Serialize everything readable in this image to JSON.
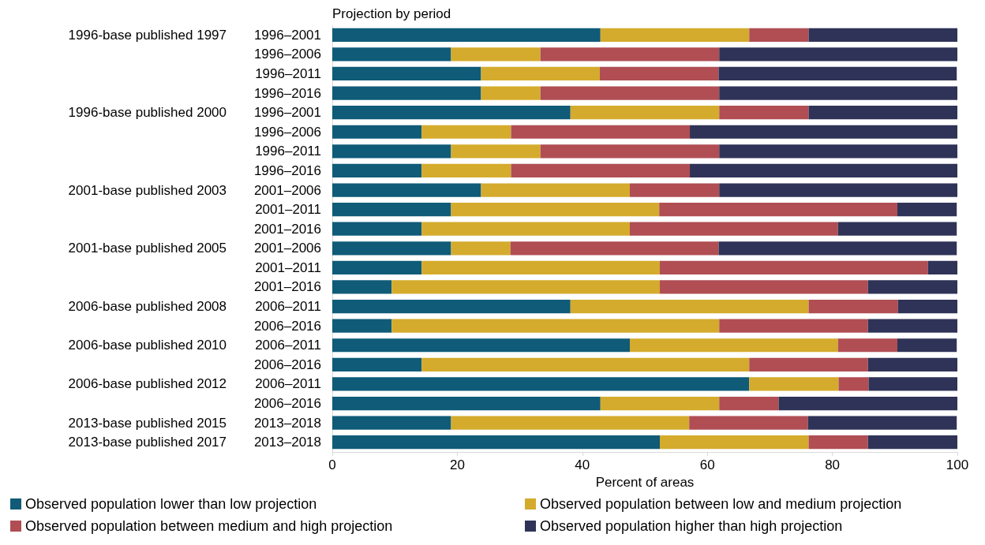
{
  "chart_data": {
    "type": "bar",
    "orientation": "horizontal",
    "stacked": true,
    "ylabel": "Projection by period",
    "xlabel": "Percent of areas",
    "categories": [
      "1996–2001",
      "1996–2006",
      "1996–2011",
      "1996–2016",
      "1996–2001",
      "1996–2006",
      "1996–2011",
      "1996–2016",
      "2001–2006",
      "2001–2011",
      "2001–2016",
      "2001–2006",
      "2001–2011",
      "2001–2016",
      "2006–2011",
      "2006–2016",
      "2006–2011",
      "2006–2016",
      "2006–2011",
      "2006–2016",
      "2013–2018",
      "2013–2018"
    ],
    "y2_categories": [
      "1996-base published 1997",
      null,
      null,
      null,
      "1996-base published 2000",
      null,
      null,
      null,
      "2001-base published 2003",
      null,
      null,
      "2001-base published 2005",
      null,
      null,
      "2006-base published 2008",
      null,
      "2006-base published 2010",
      null,
      "2006-base published 2012",
      null,
      "2013-base published 2015",
      "2013-base published 2017"
    ],
    "series": [
      {
        "name": "Observed population lower than low projection",
        "color": "#0f5b78",
        "values": [
          42.9,
          19.0,
          23.8,
          23.8,
          38.1,
          14.3,
          19.0,
          14.3,
          23.8,
          19.0,
          14.3,
          19.0,
          14.3,
          9.5,
          38.1,
          9.5,
          47.6,
          14.3,
          66.7,
          42.9,
          19.0,
          52.4
        ]
      },
      {
        "name": "Observed population between low and medium projection",
        "color": "#d4ab2d",
        "values": [
          23.8,
          14.3,
          19.0,
          9.5,
          23.8,
          14.3,
          14.3,
          14.3,
          23.8,
          33.3,
          33.3,
          9.5,
          38.1,
          42.9,
          38.1,
          52.4,
          33.3,
          52.4,
          14.3,
          19.0,
          38.1,
          23.8
        ]
      },
      {
        "name": "Observed population between medium and high projection",
        "color": "#b04e54",
        "values": [
          9.5,
          28.6,
          19.0,
          28.6,
          14.3,
          28.6,
          28.6,
          28.6,
          14.3,
          38.1,
          33.3,
          33.3,
          42.9,
          33.3,
          14.3,
          23.8,
          9.5,
          19.0,
          4.8,
          9.5,
          19.0,
          9.5
        ]
      },
      {
        "name": "Observed population higher than high projection",
        "color": "#2f3357",
        "values": [
          23.8,
          38.1,
          38.1,
          38.1,
          23.8,
          42.9,
          38.1,
          42.9,
          38.1,
          9.5,
          19.0,
          38.1,
          4.8,
          14.3,
          9.5,
          14.3,
          9.5,
          14.3,
          14.3,
          28.6,
          23.8,
          14.3
        ]
      }
    ],
    "xlim": [
      0,
      100
    ],
    "xticks": [
      0,
      20,
      40,
      60,
      80,
      100
    ],
    "grid": false,
    "legend": "bottom"
  }
}
